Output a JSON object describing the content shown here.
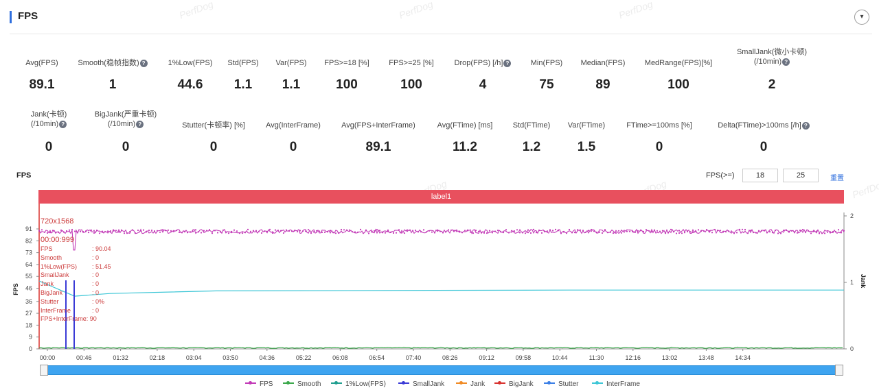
{
  "header": {
    "title": "FPS",
    "collapse_icon": "▾"
  },
  "metrics_row1": [
    {
      "label": "Avg(FPS)",
      "help": false,
      "value": "89.1"
    },
    {
      "label": "Smooth(稳帧指数)",
      "help": true,
      "value": "1"
    },
    {
      "label": "1%Low(FPS)",
      "help": false,
      "value": "44.6"
    },
    {
      "label": "Std(FPS)",
      "help": false,
      "value": "1.1"
    },
    {
      "label": "Var(FPS)",
      "help": false,
      "value": "1.1"
    },
    {
      "label": "FPS>=18 [%]",
      "help": false,
      "value": "100"
    },
    {
      "label": "FPS>=25 [%]",
      "help": false,
      "value": "100"
    },
    {
      "label": "Drop(FPS) [/h]",
      "help": true,
      "value": "4"
    },
    {
      "label": "Min(FPS)",
      "help": false,
      "value": "75"
    },
    {
      "label": "Median(FPS)",
      "help": false,
      "value": "89"
    },
    {
      "label": "MedRange(FPS)[%]",
      "help": false,
      "value": "100"
    },
    {
      "label": "SmallJank(微小卡顿)",
      "label2": "(/10min)",
      "help": true,
      "value": "2"
    }
  ],
  "metrics_row2": [
    {
      "label": "Jank(卡顿)",
      "label2": "(/10min)",
      "help": true,
      "value": "0"
    },
    {
      "label": "BigJank(严重卡顿)",
      "label2": "(/10min)",
      "help": true,
      "value": "0"
    },
    {
      "label": "Stutter(卡顿率) [%]",
      "help": false,
      "value": "0"
    },
    {
      "label": "Avg(InterFrame)",
      "help": false,
      "value": "0"
    },
    {
      "label": "Avg(FPS+InterFrame)",
      "help": false,
      "value": "89.1"
    },
    {
      "label": "Avg(FTime) [ms]",
      "help": false,
      "value": "11.2"
    },
    {
      "label": "Std(FTime)",
      "help": false,
      "value": "1.2"
    },
    {
      "label": "Var(FTime)",
      "help": false,
      "value": "1.5"
    },
    {
      "label": "FTime>=100ms [%]",
      "help": false,
      "value": "0"
    },
    {
      "label": "Delta(FTime)>100ms [/h]",
      "help": true,
      "value": "0"
    }
  ],
  "chart_section": {
    "title": "FPS",
    "threshold_label": "FPS(>=)",
    "threshold_low": "18",
    "threshold_high": "25",
    "apply_label": "重置",
    "label_bar": "label1",
    "watermark": "PerfDog"
  },
  "tooltip": {
    "resolution": "720x1568",
    "time": "00:00:999",
    "rows": [
      {
        "k": "FPS",
        "v": ": 90.04"
      },
      {
        "k": "Smooth",
        "v": ": 0"
      },
      {
        "k": "1%Low(FPS)",
        "v": ": 51.45"
      },
      {
        "k": "SmallJank",
        "v": ": 0"
      },
      {
        "k": "Jank",
        "v": ": 0"
      },
      {
        "k": "BigJank",
        "v": ": 0"
      },
      {
        "k": "Stutter",
        "v": ": 0%"
      },
      {
        "k": "InterFrame",
        "v": ": 0"
      }
    ],
    "combined": "FPS+InterFrame: 90"
  },
  "legend": [
    {
      "name": "FPS",
      "color": "#c23ab7"
    },
    {
      "name": "Smooth",
      "color": "#3aa84a"
    },
    {
      "name": "1%Low(FPS)",
      "color": "#1f9e8f"
    },
    {
      "name": "SmallJank",
      "color": "#3b3bd6"
    },
    {
      "name": "Jank",
      "color": "#f08a24"
    },
    {
      "name": "BigJank",
      "color": "#d8322f"
    },
    {
      "name": "Stutter",
      "color": "#3a7ee6"
    },
    {
      "name": "InterFrame",
      "color": "#3cc6d6"
    }
  ],
  "chart_data": {
    "type": "line",
    "ylabel": "FPS",
    "y2label": "Jank",
    "yticks": [
      "0",
      "9",
      "18",
      "27",
      "36",
      "46",
      "55",
      "64",
      "73",
      "82",
      "91"
    ],
    "y2ticks": [
      "0",
      "1",
      "2"
    ],
    "ylim": [
      0,
      91
    ],
    "y2lim": [
      0,
      2
    ],
    "xticks": [
      "00:00",
      "00:46",
      "01:32",
      "02:18",
      "03:04",
      "03:50",
      "04:36",
      "05:22",
      "06:08",
      "06:54",
      "07:40",
      "08:26",
      "09:12",
      "09:58",
      "10:44",
      "11:30",
      "12:16",
      "13:02",
      "13:48",
      "14:34"
    ],
    "series": [
      {
        "name": "FPS",
        "approx_mean": 89.1,
        "min": 75,
        "spike_at": "00:50"
      },
      {
        "name": "1%Low(FPS)",
        "points": [
          [
            0,
            51.5
          ],
          [
            40,
            40
          ],
          [
            80,
            42
          ],
          [
            200,
            44
          ],
          [
            600,
            44.6
          ],
          [
            909,
            44.6
          ]
        ]
      },
      {
        "name": "SmallJank",
        "spikes_at": [
          "00:34",
          "00:38"
        ],
        "value": 1
      },
      {
        "name": "Smooth",
        "approx_value": 0.5
      }
    ],
    "legend_position": "bottom",
    "grid": false
  }
}
